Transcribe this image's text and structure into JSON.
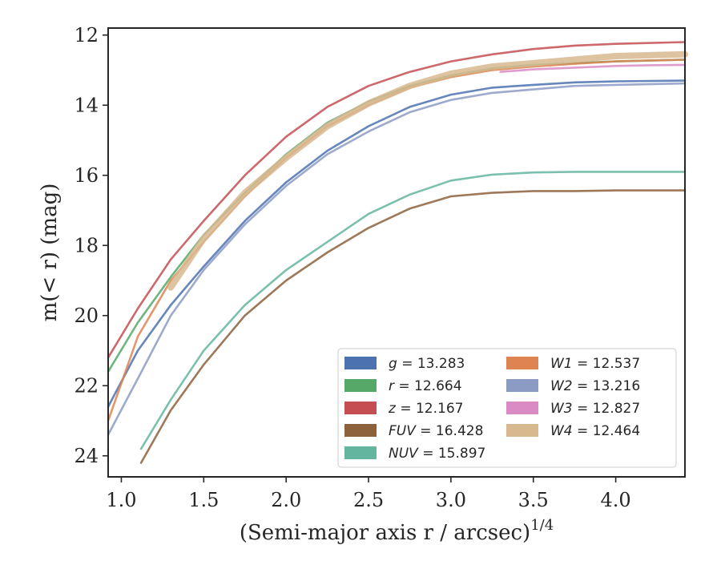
{
  "chart_data": {
    "type": "line",
    "xlabel": "(Semi-major axis r / arcsec)",
    "xlabel_power": "1/4",
    "ylabel": "m(< r) (mag)",
    "xlim": [
      0.92,
      4.42
    ],
    "ylim": [
      24.6,
      11.8
    ],
    "y_inverted": true,
    "grid": false,
    "legend_position": "lower-right",
    "x_ticks": [
      1.0,
      1.5,
      2.0,
      2.5,
      3.0,
      3.5,
      4.0
    ],
    "x_tick_labels": [
      "1.0",
      "1.5",
      "2.0",
      "2.5",
      "3.0",
      "3.5",
      "4.0"
    ],
    "y_ticks": [
      12,
      14,
      16,
      18,
      20,
      22,
      24
    ],
    "y_tick_labels": [
      "12",
      "14",
      "16",
      "18",
      "20",
      "22",
      "24"
    ],
    "series": [
      {
        "name": "g",
        "value": "13.283",
        "color": "#4c72b0",
        "x": [
          0.92,
          1.1,
          1.3,
          1.5,
          1.75,
          2.0,
          2.25,
          2.5,
          2.75,
          3.0,
          3.25,
          3.5,
          3.75,
          4.0,
          4.42
        ],
        "y": [
          22.6,
          21.0,
          19.7,
          18.6,
          17.3,
          16.2,
          15.3,
          14.6,
          14.05,
          13.7,
          13.5,
          13.42,
          13.35,
          13.32,
          13.3
        ]
      },
      {
        "name": "r",
        "value": "12.664",
        "color": "#55a868",
        "x": [
          0.92,
          1.1,
          1.3,
          1.5,
          1.75,
          2.0,
          2.25,
          2.5,
          2.75,
          3.0,
          3.25,
          3.5,
          3.75,
          4.0,
          4.42
        ],
        "y": [
          21.6,
          20.2,
          18.9,
          17.7,
          16.5,
          15.4,
          14.5,
          13.9,
          13.45,
          13.15,
          12.95,
          12.85,
          12.8,
          12.75,
          12.7
        ]
      },
      {
        "name": "z",
        "value": "12.167",
        "color": "#c44e52",
        "x": [
          0.92,
          1.1,
          1.3,
          1.5,
          1.75,
          2.0,
          2.25,
          2.5,
          2.75,
          3.0,
          3.25,
          3.5,
          3.75,
          4.0,
          4.42
        ],
        "y": [
          21.2,
          19.8,
          18.4,
          17.3,
          16.0,
          14.9,
          14.05,
          13.45,
          13.05,
          12.75,
          12.55,
          12.4,
          12.3,
          12.25,
          12.2
        ]
      },
      {
        "name": "FUV",
        "value": "16.428",
        "color": "#8c613c",
        "x": [
          1.12,
          1.3,
          1.5,
          1.75,
          2.0,
          2.25,
          2.5,
          2.75,
          3.0,
          3.25,
          3.5,
          3.75,
          4.0,
          4.42
        ],
        "y": [
          24.2,
          22.7,
          21.4,
          20.0,
          19.0,
          18.2,
          17.5,
          16.95,
          16.6,
          16.5,
          16.45,
          16.45,
          16.43,
          16.43
        ]
      },
      {
        "name": "NUV",
        "value": "15.897",
        "color": "#64b5a0",
        "x": [
          1.12,
          1.3,
          1.5,
          1.75,
          2.0,
          2.25,
          2.5,
          2.75,
          3.0,
          3.25,
          3.5,
          3.75,
          4.0,
          4.42
        ],
        "y": [
          23.8,
          22.4,
          21.0,
          19.7,
          18.7,
          17.9,
          17.1,
          16.55,
          16.15,
          15.98,
          15.92,
          15.9,
          15.9,
          15.9
        ]
      },
      {
        "name": "W1",
        "value": "12.537",
        "color": "#dd8452",
        "x": [
          0.92,
          1.1,
          1.3,
          1.5,
          1.75,
          2.0,
          2.25,
          2.5,
          2.75,
          3.0,
          3.25,
          3.5,
          3.75,
          4.0,
          4.42
        ],
        "y": [
          23.0,
          20.6,
          19.0,
          17.9,
          16.6,
          15.5,
          14.6,
          14.0,
          13.5,
          13.2,
          13.0,
          12.9,
          12.82,
          12.75,
          12.7
        ]
      },
      {
        "name": "W2",
        "value": "13.216",
        "color": "#8c9bc4",
        "x": [
          0.92,
          1.1,
          1.3,
          1.5,
          1.75,
          2.0,
          2.25,
          2.5,
          2.75,
          3.0,
          3.25,
          3.5,
          3.75,
          4.0,
          4.42
        ],
        "y": [
          23.4,
          21.8,
          20.0,
          18.7,
          17.4,
          16.3,
          15.4,
          14.75,
          14.2,
          13.85,
          13.65,
          13.55,
          13.45,
          13.42,
          13.38
        ]
      },
      {
        "name": "W3",
        "value": "12.827",
        "color": "#da8bc3",
        "x": [
          3.3,
          3.5,
          3.75,
          4.0,
          4.2,
          4.42
        ],
        "y": [
          13.05,
          12.98,
          12.93,
          12.88,
          12.86,
          12.85
        ]
      },
      {
        "name": "W4",
        "value": "12.464",
        "color": "#d8b98f",
        "x": [
          1.3,
          1.5,
          1.75,
          2.0,
          2.25,
          2.5,
          2.75,
          3.0,
          3.25,
          3.5,
          3.75,
          4.0,
          4.42
        ],
        "y": [
          19.2,
          17.8,
          16.5,
          15.5,
          14.6,
          13.95,
          13.45,
          13.1,
          12.9,
          12.8,
          12.7,
          12.6,
          12.55
        ]
      }
    ]
  }
}
